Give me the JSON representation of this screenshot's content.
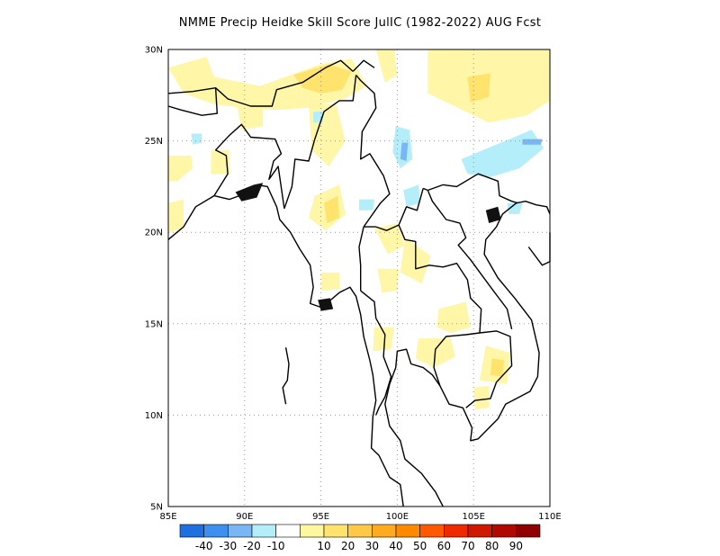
{
  "title": "NMME Precip Heidke Skill Score JulIC (1982-2022) AUG Fcst",
  "map": {
    "lon_range": [
      85,
      110
    ],
    "lat_range": [
      5,
      30
    ],
    "lat_ticks": [
      "30N",
      "25N",
      "20N",
      "15N",
      "10N",
      "5N"
    ],
    "lon_ticks": [
      "85E",
      "90E",
      "95E",
      "100E",
      "105E",
      "110E"
    ],
    "grid": true
  },
  "colorbar": {
    "colors": [
      "#1e6fe0",
      "#3d8ff0",
      "#78b6f5",
      "#b4eefa",
      "#ffffff",
      "#fff6a0",
      "#ffe36c",
      "#ffc845",
      "#ffab20",
      "#ff8a00",
      "#ff5a00",
      "#f02a00",
      "#d01800",
      "#b00a00",
      "#900000"
    ],
    "labels": [
      "-40",
      "-30",
      "-20",
      "-10",
      "10",
      "20",
      "30",
      "40",
      "50",
      "60",
      "70",
      "80",
      "90"
    ]
  },
  "palette": {
    "light_yellow": "#fff6a8",
    "yellow": "#ffe36c",
    "light_cyan": "#b4eefa",
    "light_blue": "#78b6f5",
    "border": "#000000",
    "grid": "#999999"
  }
}
